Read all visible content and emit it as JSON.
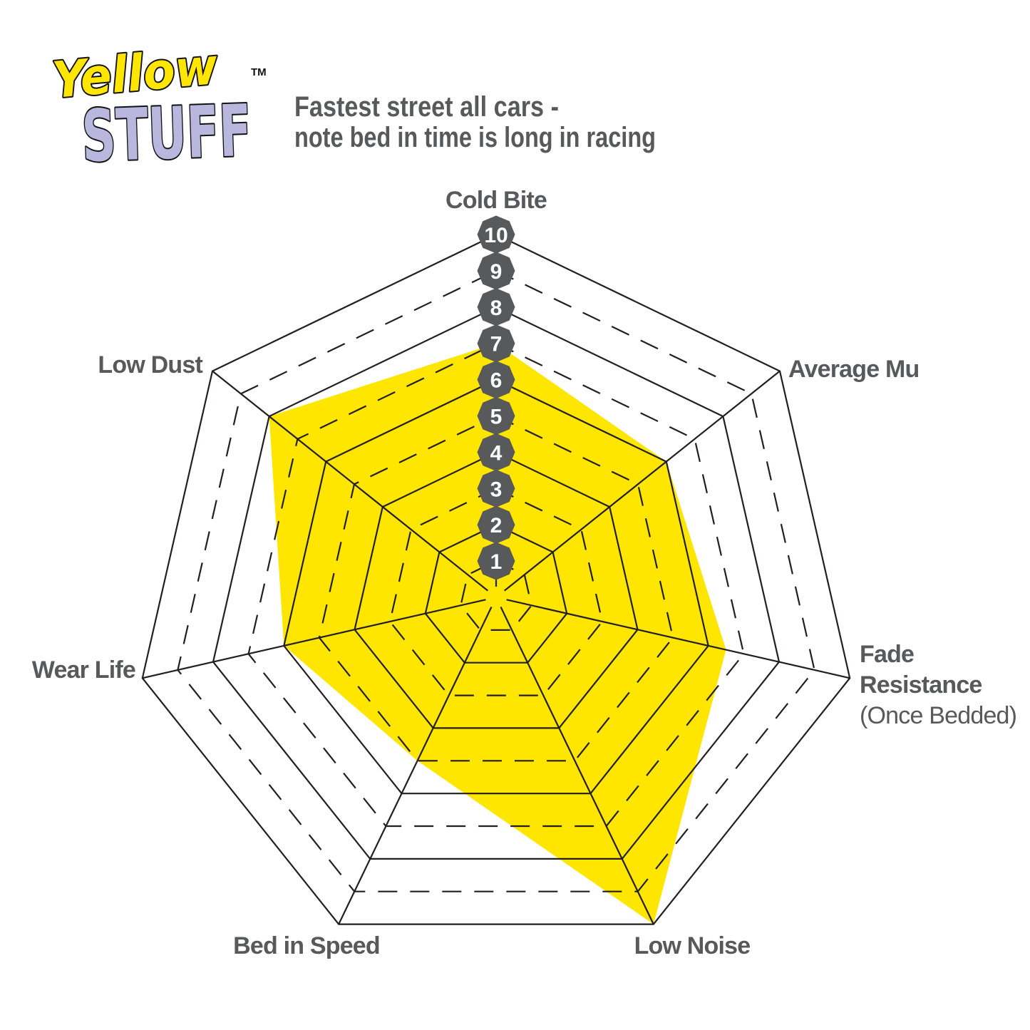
{
  "logo": {
    "word1": "Yellow",
    "word2": "STUFF",
    "trademark": "TM",
    "colors": {
      "word1_fill": "#ffe600",
      "word2_fill": "#b9b7dd",
      "outline": "#111111"
    }
  },
  "title": {
    "line1": "Fastest street all cars -",
    "line2": "note bed in time is long in racing"
  },
  "labels": {
    "cold_bite": "Cold Bite",
    "average_mu": "Average Mu",
    "fade_line1": "Fade",
    "fade_line2": "Resistance",
    "fade_line3": "(Once Bedded)",
    "low_noise": "Low Noise",
    "bed_in_speed": "Bed in Speed",
    "wear_life": "Wear Life",
    "low_dust": "Low Dust"
  },
  "chart_data": {
    "type": "radar",
    "categories": [
      "Cold Bite",
      "Average Mu",
      "Fade Resistance (Once Bedded)",
      "Low Noise",
      "Bed in Speed",
      "Wear Life",
      "Low Dust"
    ],
    "series": [
      {
        "name": "Yellowstuff",
        "values": [
          7,
          6,
          6.5,
          10,
          5,
          6,
          8
        ]
      }
    ],
    "scale": {
      "min": 0,
      "max": 10,
      "ticks": [
        "1",
        "2",
        "3",
        "4",
        "5",
        "6",
        "7",
        "8",
        "9",
        "10"
      ]
    },
    "grid": {
      "rings": 10,
      "even_rings": "solid",
      "odd_rings": "dashed",
      "spokes": 7
    },
    "legend": "none"
  },
  "colors": {
    "accent_yellow": "#ffe600",
    "badge_gray": "#58595b",
    "label_gray": "#58595b",
    "line_black": "#231f20",
    "background": "#ffffff"
  }
}
